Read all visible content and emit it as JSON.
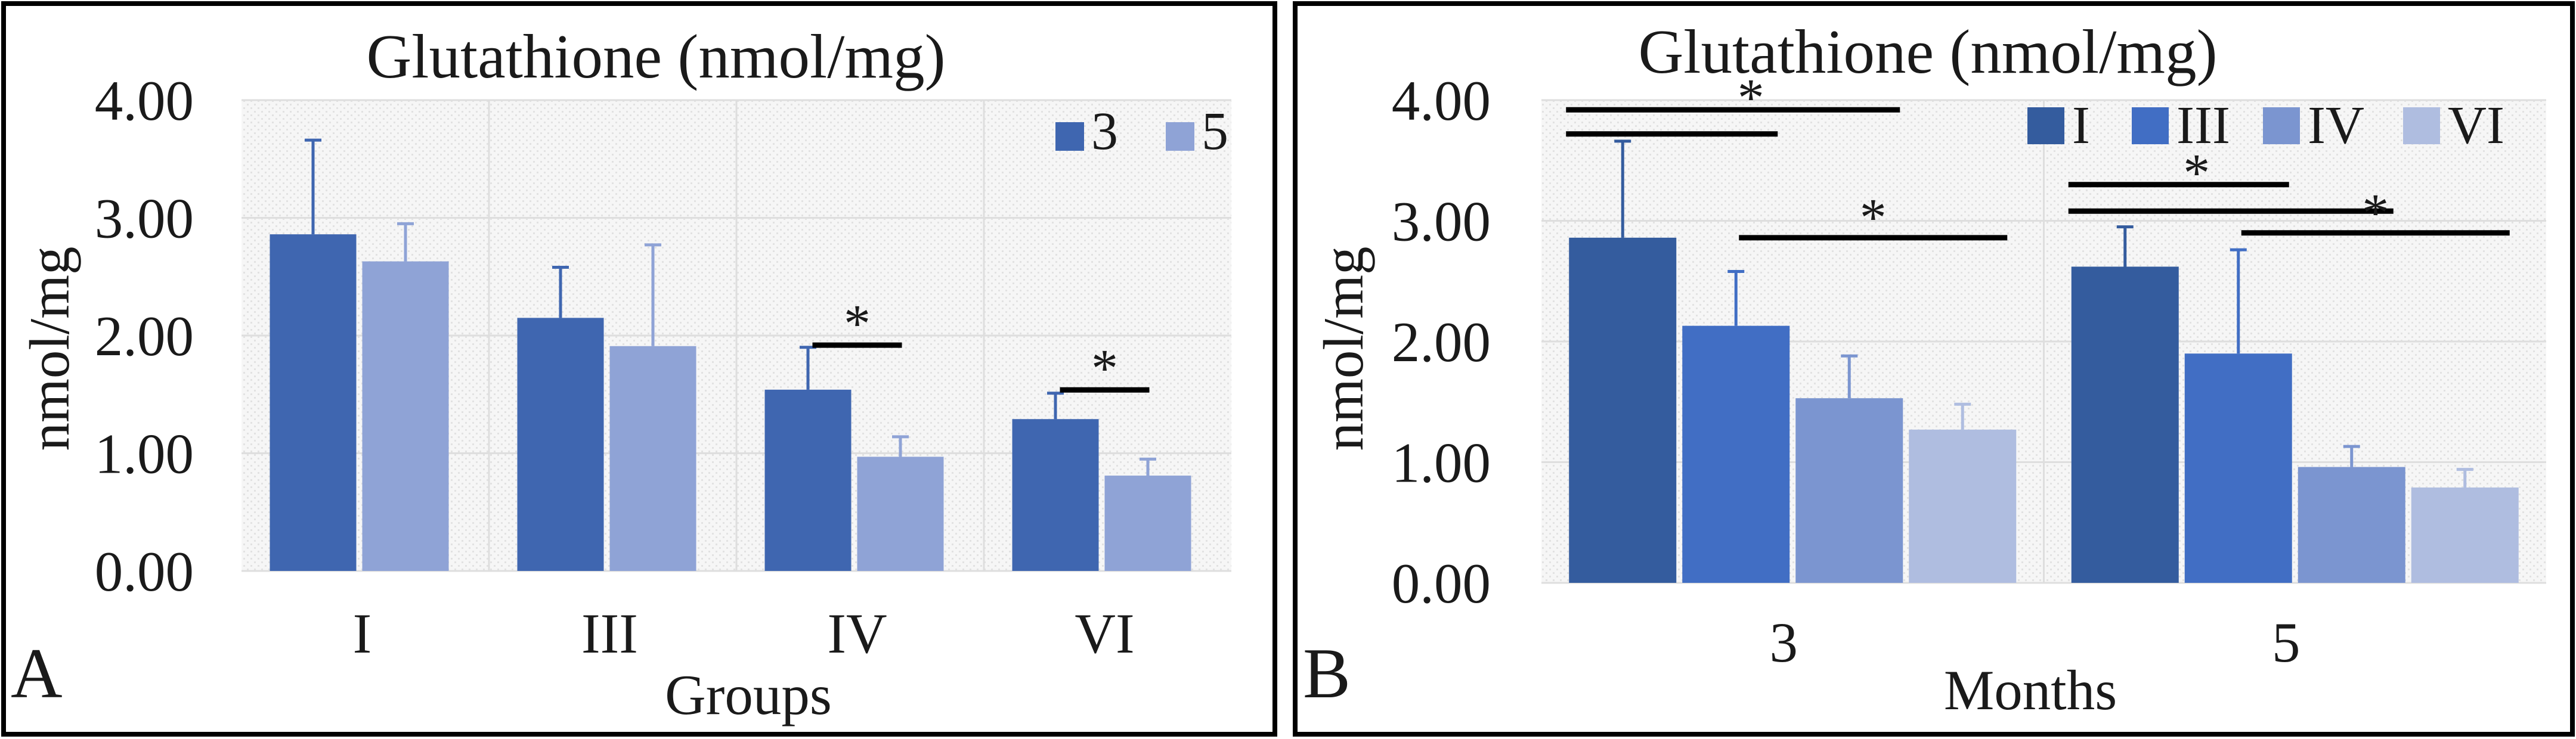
{
  "chart_data": [
    {
      "panel": "A",
      "type": "bar",
      "title": "Glutathione (nmol/mg)",
      "xlabel": "Groups",
      "ylabel": "nmol/mg",
      "categories": [
        "I",
        "III",
        "IV",
        "VI"
      ],
      "ylim": [
        0,
        4
      ],
      "yticks": [
        "0.00",
        "1.00",
        "2.00",
        "3.00",
        "4.00"
      ],
      "legend_position": "top-right",
      "series": [
        {
          "name": "3",
          "color": "#3f66b0",
          "values": [
            2.86,
            2.15,
            1.54,
            1.29
          ],
          "errors": [
            0.8,
            0.43,
            0.36,
            0.22
          ]
        },
        {
          "name": "5",
          "color": "#8fa3d6",
          "values": [
            2.63,
            1.91,
            0.97,
            0.81
          ],
          "errors": [
            0.32,
            0.86,
            0.17,
            0.14
          ]
        }
      ],
      "annotations": [
        {
          "text": "*",
          "category": "IV",
          "y": 2.06
        },
        {
          "text": "*",
          "category": "VI",
          "y": 1.68
        }
      ]
    },
    {
      "panel": "B",
      "type": "bar",
      "title": "Glutathione (nmol/mg)",
      "xlabel": "Months",
      "ylabel": "nmol/mg",
      "categories": [
        "3",
        "5"
      ],
      "ylim": [
        0,
        4
      ],
      "yticks": [
        "0.00",
        "1.00",
        "2.00",
        "3.00",
        "4.00"
      ],
      "legend_position": "top-right",
      "series": [
        {
          "name": "I",
          "color": "#345c9e",
          "values": [
            2.86,
            2.62
          ],
          "errors": [
            0.8,
            0.33
          ]
        },
        {
          "name": "III",
          "color": "#416ec4",
          "values": [
            2.13,
            1.9
          ],
          "errors": [
            0.45,
            0.86
          ]
        },
        {
          "name": "IV",
          "color": "#7b95d0",
          "values": [
            1.53,
            0.96
          ],
          "errors": [
            0.35,
            0.17
          ]
        },
        {
          "name": "VI",
          "color": "#afbde0",
          "values": [
            1.27,
            0.79
          ],
          "errors": [
            0.21,
            0.15
          ]
        }
      ],
      "annotations": [
        {
          "text": "*",
          "category": "3",
          "y": 3.92
        },
        {
          "text": "*",
          "category": "3",
          "y": 2.86
        },
        {
          "text": "*",
          "category": "5",
          "y": 3.3
        },
        {
          "text": "*",
          "category": "5",
          "y": 2.9
        }
      ]
    }
  ]
}
